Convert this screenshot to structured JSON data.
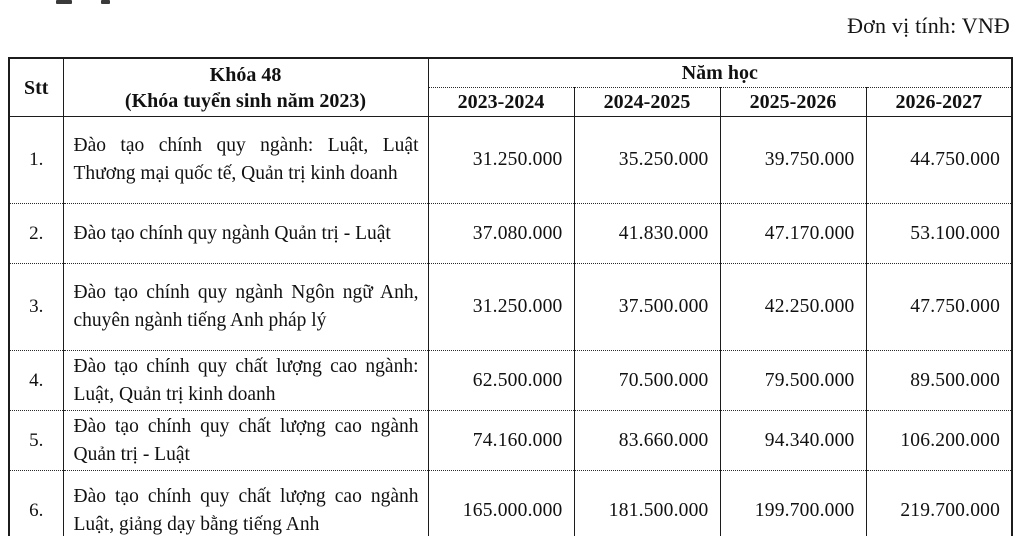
{
  "page": {
    "unit_label": "Đơn vị tính: VNĐ"
  },
  "table": {
    "header": {
      "stt": "Stt",
      "cohort_line1": "Khóa 48",
      "cohort_line2": "(Khóa tuyển sinh năm 2023)",
      "year_group": "Năm học",
      "years": [
        "2023-2024",
        "2024-2025",
        "2025-2026",
        "2026-2027"
      ]
    },
    "rows": [
      {
        "stt": "1.",
        "program": "Đào tạo chính quy ngành: Luật, Luật Thương mại quốc tế, Quản trị kinh doanh",
        "values": [
          "31.250.000",
          "35.250.000",
          "39.750.000",
          "44.750.000"
        ]
      },
      {
        "stt": "2.",
        "program": "Đào tạo chính quy ngành Quản trị - Luật",
        "values": [
          "37.080.000",
          "41.830.000",
          "47.170.000",
          "53.100.000"
        ]
      },
      {
        "stt": "3.",
        "program": "Đào tạo chính quy ngành Ngôn ngữ Anh, chuyên ngành tiếng Anh pháp lý",
        "values": [
          "31.250.000",
          "37.500.000",
          "42.250.000",
          "47.750.000"
        ]
      },
      {
        "stt": "4.",
        "program": "Đào tạo chính quy chất lượng cao ngành: Luật, Quản trị kinh doanh",
        "values": [
          "62.500.000",
          "70.500.000",
          "79.500.000",
          "89.500.000"
        ]
      },
      {
        "stt": "5.",
        "program": "Đào tạo chính quy chất lượng cao ngành Quản trị - Luật",
        "values": [
          "74.160.000",
          "83.660.000",
          "94.340.000",
          "106.200.000"
        ]
      },
      {
        "stt": "6.",
        "program": "Đào tạo chính quy chất lượng cao ngành Luật, giảng dạy bằng tiếng Anh",
        "values": [
          "165.000.000",
          "181.500.000",
          "199.700.000",
          "219.700.000"
        ]
      }
    ]
  }
}
